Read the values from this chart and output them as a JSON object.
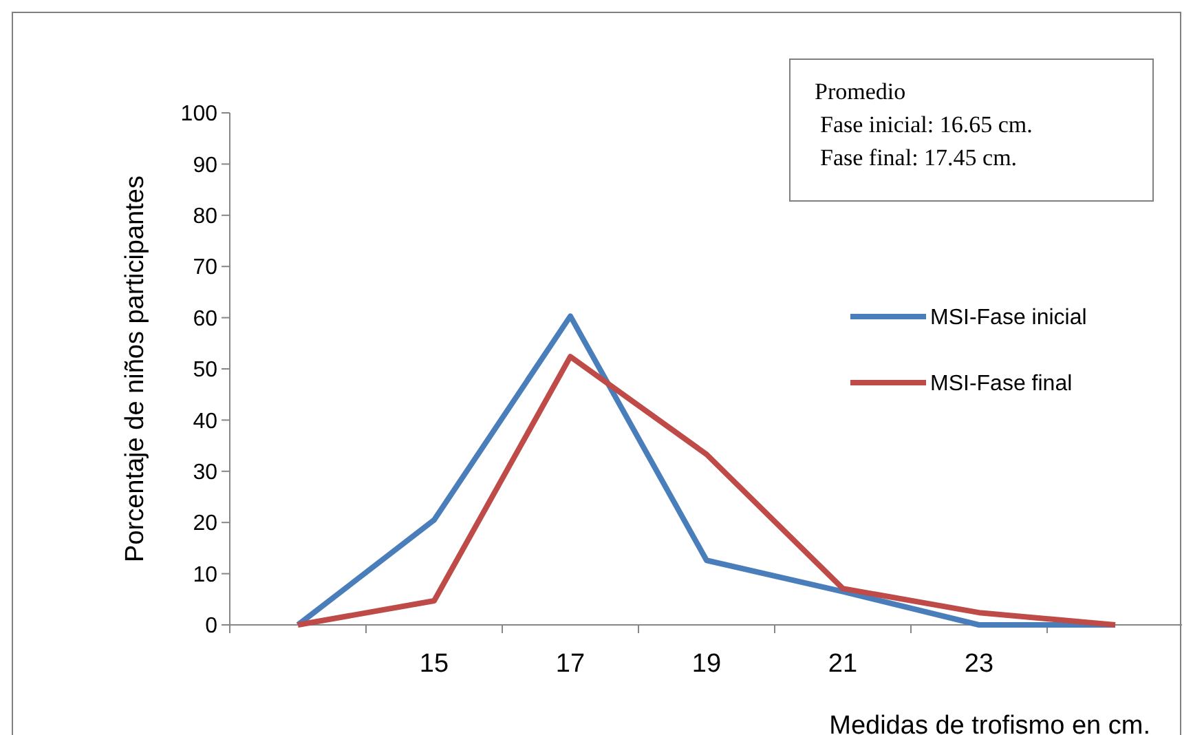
{
  "chart_data": {
    "type": "line",
    "xlabel": "Medidas de trofismo en cm.",
    "ylabel": "Porcentaje de niños participantes",
    "categories": [
      null,
      "15",
      "17",
      "19",
      "21",
      "23",
      null
    ],
    "series": [
      {
        "name": "MSI-Fase inicial",
        "color": "#4a7ebb",
        "values": [
          0,
          20.5,
          60.3,
          12.6,
          6.5,
          0,
          0
        ]
      },
      {
        "name": "MSI-Fase final",
        "color": "#be4b48",
        "values": [
          0,
          4.7,
          52.4,
          33.3,
          7.1,
          2.4,
          0
        ]
      }
    ],
    "ylim": [
      0,
      100
    ],
    "yticks": [
      0,
      10,
      20,
      30,
      40,
      50,
      60,
      70,
      80,
      90,
      100
    ],
    "annotations": [
      "Promedio",
      "Fase inicial: 16.65 cm.",
      "Fase final: 17.45 cm."
    ],
    "legend": "right",
    "grid": false,
    "marker": "none",
    "line_style": "solid"
  }
}
